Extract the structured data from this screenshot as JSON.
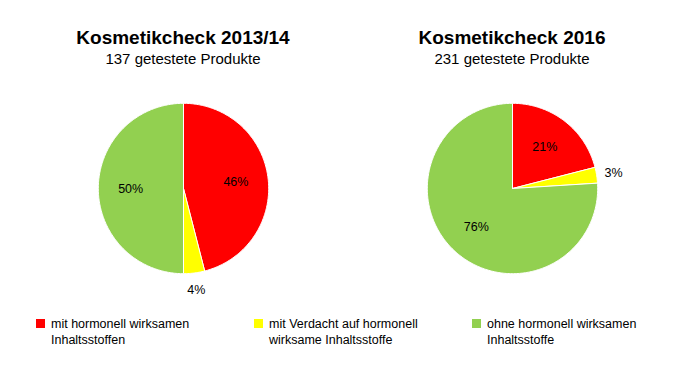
{
  "chart_data": [
    {
      "type": "pie",
      "title": "Kosmetikcheck 2013/14",
      "subtitle": "137 getestete Produkte",
      "categories": [
        "mit hormonell wirksamen Inhaltsstoffen",
        "mit Verdacht auf hormonell wirksame Inhaltsstoffe",
        "ohne hormonell wirksamen Inhaltsstoffe"
      ],
      "values": [
        46,
        4,
        50
      ],
      "value_labels": [
        "46%",
        "4%",
        "50%"
      ],
      "colors": [
        "#ff0000",
        "#ffff00",
        "#92d050"
      ],
      "data_labels": true,
      "legend": "bottom",
      "tick_labels": false
    },
    {
      "type": "pie",
      "title": "Kosmetikcheck 2016",
      "subtitle": "231 getestete Produkte",
      "categories": [
        "mit hormonell wirksamen Inhaltsstoffen",
        "mit Verdacht auf hormonell wirksame Inhaltsstoffe",
        "ohne hormonell wirksamen Inhaltsstoffe"
      ],
      "values": [
        21,
        3,
        76
      ],
      "value_labels": [
        "21%",
        "3%",
        "76%"
      ],
      "colors": [
        "#ff0000",
        "#ffff00",
        "#92d050"
      ],
      "data_labels": true,
      "legend": "bottom",
      "tick_labels": false
    }
  ]
}
